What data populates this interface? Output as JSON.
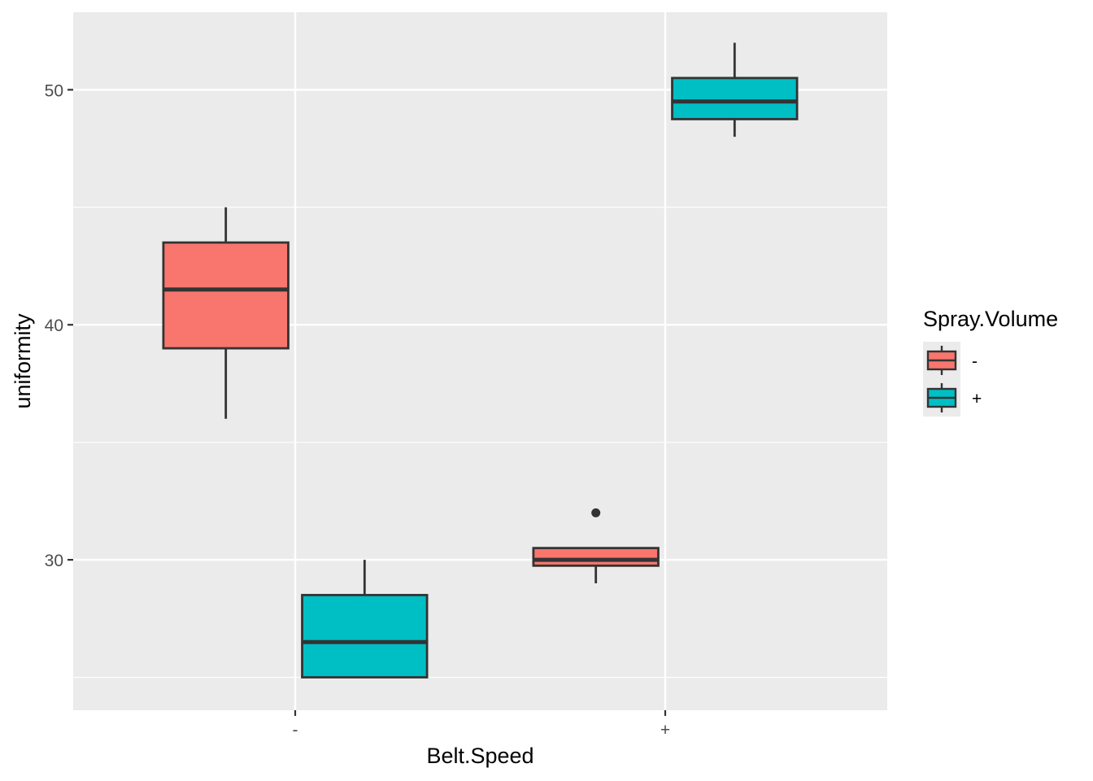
{
  "chart_data": {
    "type": "boxplot",
    "xlabel": "Belt.Speed",
    "ylabel": "uniformity",
    "categories": [
      "-",
      "+"
    ],
    "ylim": [
      23.6,
      53.3
    ],
    "yticks": [
      30,
      40,
      50
    ],
    "grid": true,
    "legend": {
      "title": "Spray.Volume",
      "placement": "right",
      "entries": [
        {
          "label": "-",
          "color": "#F8766D"
        },
        {
          "label": "+",
          "color": "#00BFC4"
        }
      ]
    },
    "series": [
      {
        "name": "-",
        "color": "#F8766D",
        "boxes": [
          {
            "category": "-",
            "whisker_low": 36.0,
            "q1": 39.0,
            "median": 41.5,
            "q3": 43.5,
            "whisker_high": 45.0,
            "outliers": []
          },
          {
            "category": "+",
            "whisker_low": 29.0,
            "q1": 29.75,
            "median": 30.0,
            "q3": 30.5,
            "whisker_high": 30.5,
            "outliers": [
              32.0
            ]
          }
        ]
      },
      {
        "name": "+",
        "color": "#00BFC4",
        "boxes": [
          {
            "category": "-",
            "whisker_low": 25.0,
            "q1": 25.0,
            "median": 26.5,
            "q3": 28.5,
            "whisker_high": 30.0,
            "outliers": []
          },
          {
            "category": "+",
            "whisker_low": 48.0,
            "q1": 48.75,
            "median": 49.5,
            "q3": 50.5,
            "whisker_high": 52.0,
            "outliers": []
          }
        ]
      }
    ]
  }
}
